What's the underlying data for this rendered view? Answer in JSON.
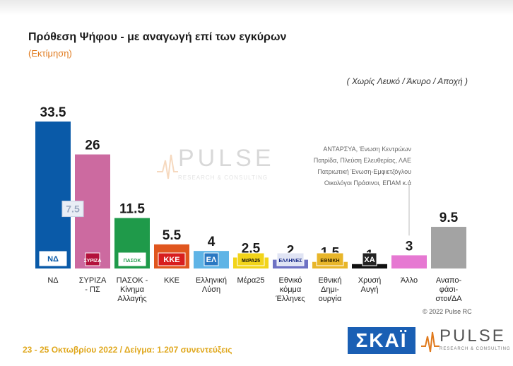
{
  "title": "Πρόθεση Ψήφου - με αναγωγή επί των εγκύρων",
  "subtitle": "(Εκτίμηση)",
  "note": "( Χωρίς Λευκό / Άκυρο / Αποχή )",
  "others_note": [
    "ΑΝΤΑΡΣΥΑ, Ένωση Κεντρώων",
    "Πατρίδα, Πλεύση Ελευθερίας, ΛΑΕ",
    "Πατριωτική Ένωση-Εμφιετζόγλου",
    "Οικολόγοι Πράσινοι, ΕΠΑΜ  κ.ά"
  ],
  "copyright": "© 2022 Pulse RC",
  "footer": "23 - 25 Οκτωβρίου  2022  /  Δείγμα:  1.207 συνεντεύξεις",
  "logos": {
    "skai": "ΣΚΑΪ",
    "pulse": "PULSE",
    "pulse_sub": "RESEARCH & CONSULTING"
  },
  "chart_data": {
    "type": "bar",
    "title": "Πρόθεση Ψήφου - με αναγωγή επί των εγκύρων",
    "subtitle": "(Εκτίμηση)",
    "categories": [
      [
        "ΝΔ"
      ],
      [
        "ΣΥΡΙΖΑ",
        "- ΠΣ"
      ],
      [
        "ΠΑΣΟΚ -",
        "Κίνημα",
        "Αλλαγής"
      ],
      [
        "ΚΚΕ"
      ],
      [
        "Ελληνική",
        "Λύση"
      ],
      [
        "Μέρα25"
      ],
      [
        "Εθνικό",
        "κόμμα",
        "Έλληνες"
      ],
      [
        "Εθνική",
        "Δημι-",
        "ουργία"
      ],
      [
        "Χρυσή",
        "Αυγή"
      ],
      [
        "Άλλο"
      ],
      [
        "Αναπο-",
        "φάσι-",
        "στοι/ΔΑ"
      ]
    ],
    "values": [
      33.5,
      26,
      11.5,
      5.5,
      4,
      2.5,
      2,
      1.5,
      1,
      3,
      9.5
    ],
    "value_labels": [
      "33.5",
      "26",
      "11.5",
      "5.5",
      "4",
      "2.5",
      "2",
      "1.5",
      "1",
      "3",
      "9.5"
    ],
    "colors": [
      "#0a5aa8",
      "#cc6aa0",
      "#1f9a4a",
      "#e0561e",
      "#5fb4e6",
      "#f2d41a",
      "#6e72c4",
      "#e8b62a",
      "#111111",
      "#e678d2",
      "#a3a3a3"
    ],
    "gap_annotation": "7.5",
    "icons": [
      "ΝΔ",
      "ΣΥΡΙΖΑ",
      "ΠΑΣΟΚ",
      "ΚΚΕ",
      "ΕΛ",
      "ΜέΡΑ25",
      "ΕΛΛΗΝΕΣ",
      "ΕΘΝΙΚΗ",
      "ΧΑ",
      "",
      ""
    ],
    "ylim": [
      0,
      38
    ],
    "grid": false,
    "legend": "none"
  }
}
